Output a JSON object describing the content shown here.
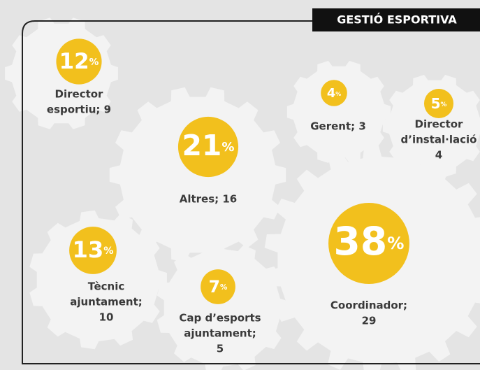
{
  "chart_data": {
    "type": "gears",
    "title": "GESTIÓ ESPORTIVA",
    "unit": "%",
    "categories": [
      [
        "Director",
        "esportiu; 9"
      ],
      [
        "Altres; 16"
      ],
      [
        "Gerent; 3"
      ],
      [
        "Director",
        "d’instal·lació",
        "4"
      ],
      [
        "Tècnic",
        "ajuntament;",
        "10"
      ],
      [
        "Cap d’esports",
        "ajuntament;",
        "5"
      ],
      [
        "Coordinador;",
        "29"
      ]
    ],
    "values": [
      12,
      21,
      4,
      5,
      13,
      7,
      38
    ],
    "color": "#f2c01d"
  }
}
